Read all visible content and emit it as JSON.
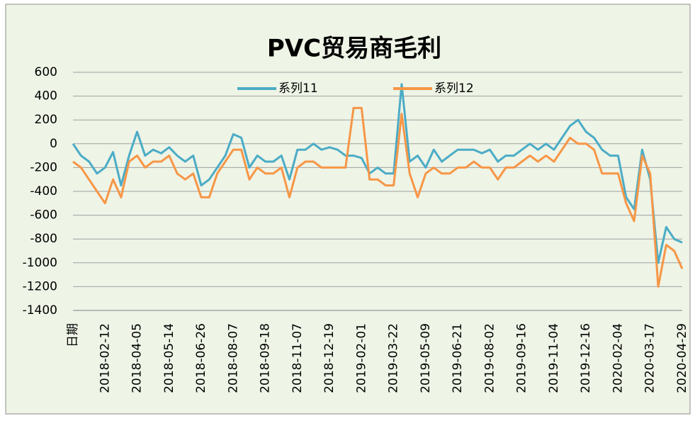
{
  "chart_data": {
    "type": "line",
    "title": "PVC贸易商毛利",
    "categories": [
      "日期",
      null,
      null,
      null,
      "2018-02-12",
      null,
      null,
      null,
      "2018-04-05",
      null,
      null,
      null,
      "2018-05-14",
      null,
      null,
      null,
      "2018-06-26",
      null,
      null,
      null,
      "2018-08-07",
      null,
      null,
      null,
      "2018-09-18",
      null,
      null,
      null,
      "2018-11-07",
      null,
      null,
      null,
      "2018-12-19",
      null,
      null,
      null,
      "2019-02-01",
      null,
      null,
      null,
      "2019-03-22",
      null,
      null,
      null,
      "2019-05-09",
      null,
      null,
      null,
      "2019-06-21",
      null,
      null,
      null,
      "2019-08-02",
      null,
      null,
      null,
      "2019-09-16",
      null,
      null,
      null,
      "2019-11-04",
      null,
      null,
      null,
      "2019-12-16",
      null,
      null,
      null,
      "2020-02-04",
      null,
      null,
      null,
      "2020-03-17",
      null,
      null,
      null,
      "2020-04-29"
    ],
    "series": [
      {
        "name": "系列11",
        "color": "#4bacc6",
        "values": [
          0,
          -100,
          -150,
          -250,
          -200,
          -70,
          -350,
          -100,
          100,
          -100,
          -50,
          -80,
          -30,
          -100,
          -150,
          -100,
          -350,
          -300,
          -200,
          -100,
          80,
          50,
          -200,
          -100,
          -150,
          -150,
          -100,
          -300,
          -50,
          -50,
          0,
          -50,
          -30,
          -50,
          -100,
          -100,
          -120,
          -250,
          -200,
          -250,
          -250,
          500,
          -150,
          -100,
          -200,
          -50,
          -150,
          -100,
          -50,
          -50,
          -50,
          -80,
          -50,
          -150,
          -100,
          -100,
          -50,
          0,
          -50,
          0,
          -50,
          50,
          150,
          200,
          100,
          50,
          -50,
          -100,
          -100,
          -450,
          -550,
          -50,
          -300,
          -1000,
          -700,
          -800,
          -830
        ]
      },
      {
        "name": "系列12",
        "color": "#f79646",
        "values": [
          -150,
          -200,
          -300,
          -400,
          -500,
          -300,
          -450,
          -150,
          -100,
          -200,
          -150,
          -150,
          -100,
          -250,
          -300,
          -250,
          -450,
          -450,
          -250,
          -150,
          -50,
          -50,
          -300,
          -200,
          -250,
          -250,
          -200,
          -450,
          -200,
          -150,
          -150,
          -200,
          -200,
          -200,
          -200,
          300,
          300,
          -300,
          -300,
          -350,
          -350,
          250,
          -250,
          -450,
          -250,
          -200,
          -250,
          -250,
          -200,
          -200,
          -150,
          -200,
          -200,
          -300,
          -200,
          -200,
          -150,
          -100,
          -150,
          -100,
          -150,
          -50,
          50,
          0,
          0,
          -50,
          -250,
          -250,
          -250,
          -500,
          -650,
          -100,
          -250,
          -1200,
          -850,
          -900,
          -1050
        ]
      }
    ],
    "ylim": [
      -1400,
      600
    ],
    "yticks": [
      -1400,
      -1200,
      -1000,
      -800,
      -600,
      -400,
      -200,
      0,
      200,
      400,
      600
    ],
    "grid": true,
    "legend": "top"
  }
}
